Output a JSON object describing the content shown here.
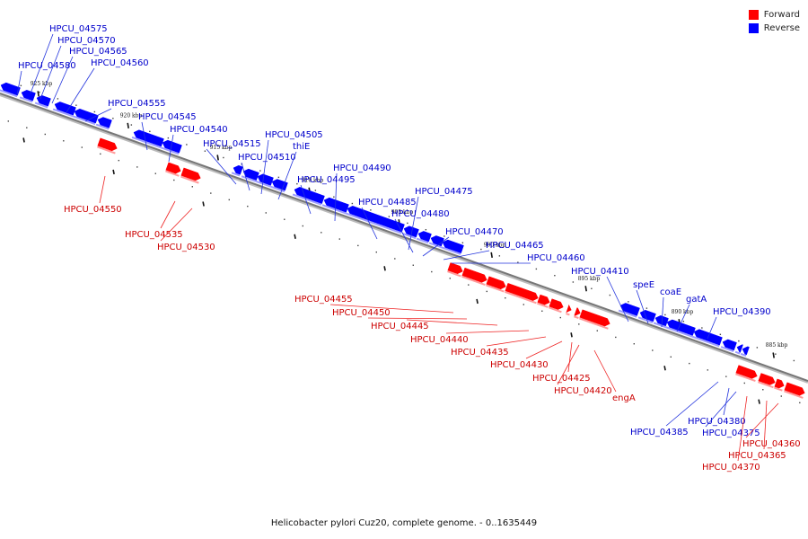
{
  "colors": {
    "forward": "#ff0000",
    "reverse": "#0000ff",
    "backbone": "#777777"
  },
  "legend": {
    "items": [
      {
        "label": "Forward",
        "color": "#ff0000"
      },
      {
        "label": "Reverse",
        "color": "#0000ff"
      }
    ]
  },
  "caption": "Helicobacter pylori Cuz20, complete genome. - 0..1635449",
  "scale_labels": [
    "925 kbp",
    "920 kbp",
    "915 kbp",
    "910 kbp",
    "905 kbp",
    "900 kbp",
    "895 kbp",
    "890 kbp",
    "885 kbp"
  ],
  "genes": [
    {
      "name": "HPCU_04575",
      "strand": "reverse"
    },
    {
      "name": "HPCU_04570",
      "strand": "reverse"
    },
    {
      "name": "HPCU_04565",
      "strand": "reverse"
    },
    {
      "name": "HPCU_04580",
      "strand": "reverse"
    },
    {
      "name": "HPCU_04560",
      "strand": "reverse"
    },
    {
      "name": "HPCU_04555",
      "strand": "reverse"
    },
    {
      "name": "HPCU_04545",
      "strand": "reverse"
    },
    {
      "name": "HPCU_04540",
      "strand": "reverse"
    },
    {
      "name": "HPCU_04515",
      "strand": "reverse"
    },
    {
      "name": "HPCU_04510",
      "strand": "reverse"
    },
    {
      "name": "HPCU_04505",
      "strand": "reverse"
    },
    {
      "name": "thiE",
      "strand": "reverse"
    },
    {
      "name": "HPCU_04490",
      "strand": "reverse"
    },
    {
      "name": "HPCU_04495",
      "strand": "reverse"
    },
    {
      "name": "HPCU_04485",
      "strand": "reverse"
    },
    {
      "name": "HPCU_04475",
      "strand": "reverse"
    },
    {
      "name": "HPCU_04480",
      "strand": "reverse"
    },
    {
      "name": "HPCU_04470",
      "strand": "reverse"
    },
    {
      "name": "HPCU_04465",
      "strand": "reverse"
    },
    {
      "name": "HPCU_04460",
      "strand": "reverse"
    },
    {
      "name": "HPCU_04410",
      "strand": "reverse"
    },
    {
      "name": "speE",
      "strand": "reverse"
    },
    {
      "name": "coaE",
      "strand": "reverse"
    },
    {
      "name": "gatA",
      "strand": "reverse"
    },
    {
      "name": "HPCU_04390",
      "strand": "reverse"
    },
    {
      "name": "HPCU_04385",
      "strand": "reverse"
    },
    {
      "name": "HPCU_04380",
      "strand": "reverse"
    },
    {
      "name": "HPCU_04375",
      "strand": "reverse"
    },
    {
      "name": "HPCU_04550",
      "strand": "forward"
    },
    {
      "name": "HPCU_04535",
      "strand": "forward"
    },
    {
      "name": "HPCU_04530",
      "strand": "forward"
    },
    {
      "name": "HPCU_04455",
      "strand": "forward"
    },
    {
      "name": "HPCU_04450",
      "strand": "forward"
    },
    {
      "name": "HPCU_04445",
      "strand": "forward"
    },
    {
      "name": "HPCU_04440",
      "strand": "forward"
    },
    {
      "name": "HPCU_04435",
      "strand": "forward"
    },
    {
      "name": "HPCU_04430",
      "strand": "forward"
    },
    {
      "name": "HPCU_04425",
      "strand": "forward"
    },
    {
      "name": "HPCU_04420",
      "strand": "forward"
    },
    {
      "name": "engA",
      "strand": "forward"
    },
    {
      "name": "HPCU_04360",
      "strand": "forward"
    },
    {
      "name": "HPCU_04365",
      "strand": "forward"
    },
    {
      "name": "HPCU_04370",
      "strand": "forward"
    }
  ]
}
